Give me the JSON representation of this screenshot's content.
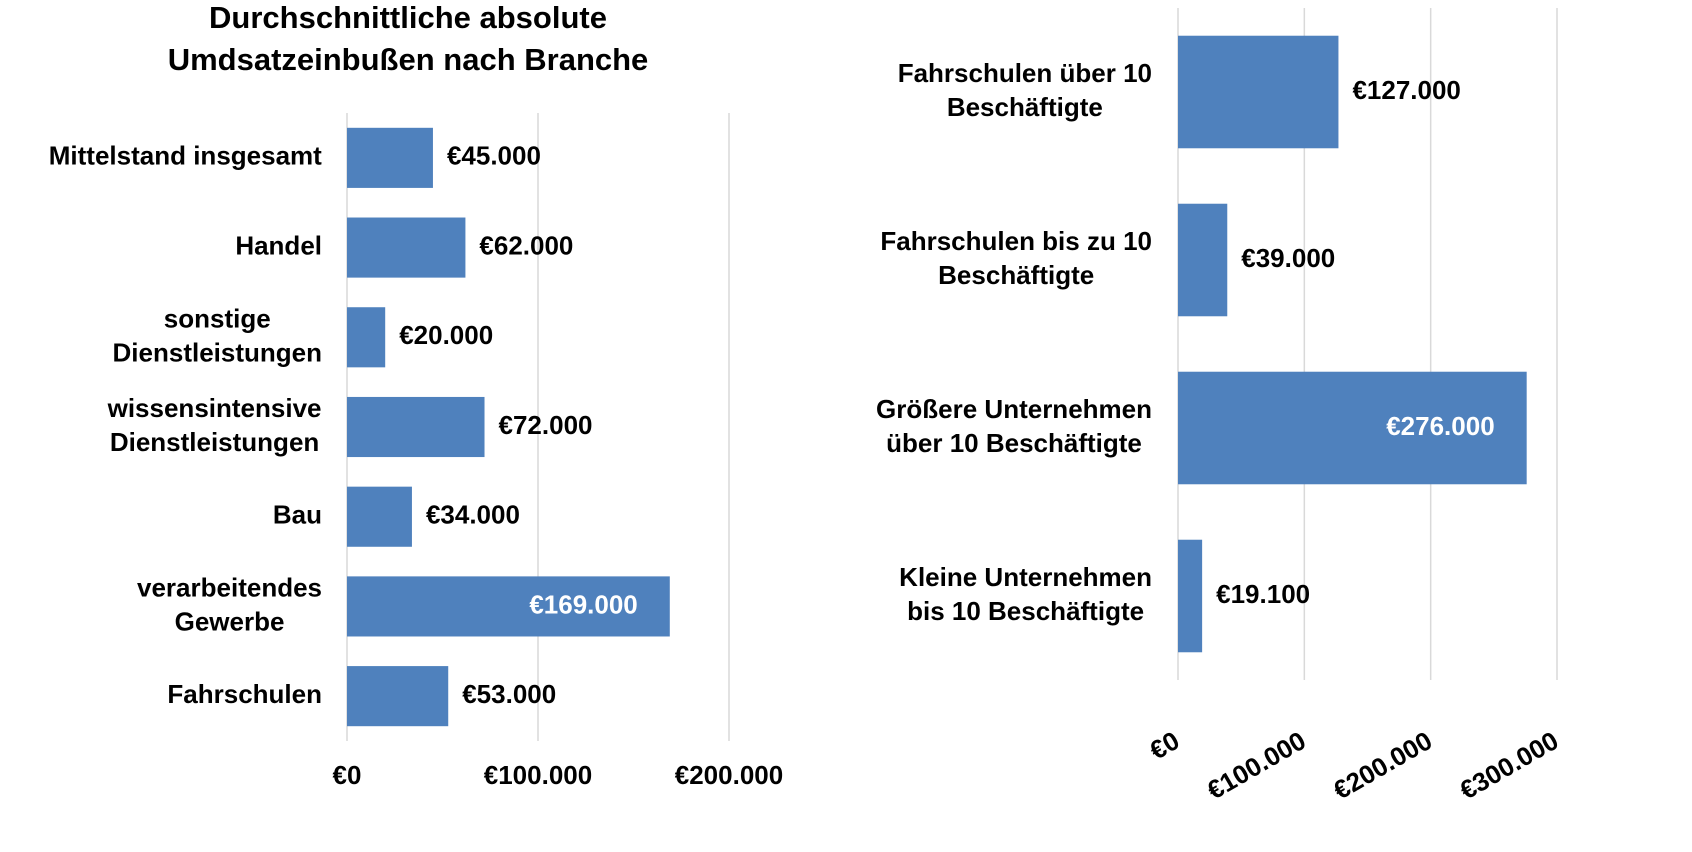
{
  "chart_data": [
    {
      "type": "barh",
      "title": "Durchschnittliche absolute\nUmdsatzeinbußen nach Branche",
      "categories": [
        "Mittelstand insgesamt",
        "Handel",
        "sonstige\nDienstleistungen",
        "wissensintensive\nDienstleistungen",
        "Bau",
        "verarbeitendes\nGewerbe",
        "Fahrschulen"
      ],
      "values": [
        45000,
        62000,
        20000,
        72000,
        34000,
        169000,
        53000
      ],
      "value_labels": [
        "€45.000",
        "€62.000",
        "€20.000",
        "€72.000",
        "€34.000",
        "€169.000",
        "€53.000"
      ],
      "color": "#4f81bd",
      "xlim": [
        0,
        200000
      ],
      "xticks": [
        {
          "value": 0,
          "label": "€0"
        },
        {
          "value": 100000,
          "label": "€100.000"
        },
        {
          "value": 200000,
          "label": "€200.000"
        }
      ],
      "grid": true
    },
    {
      "type": "barh",
      "categories": [
        "Fahrschulen über 10\nBeschäftigte",
        "Fahrschulen bis zu 10\nBeschäftigte",
        "Größere Unternehmen\nüber 10 Beschäftigte",
        "Kleine Unternehmen\nbis 10 Beschäftigte"
      ],
      "values": [
        127000,
        39000,
        276000,
        19100
      ],
      "value_labels": [
        "€127.000",
        "€39.000",
        "€276.000",
        "€19.100"
      ],
      "color": "#4f81bd",
      "xlim": [
        0,
        300000
      ],
      "xticks": [
        {
          "value": 0,
          "label": "€0"
        },
        {
          "value": 100000,
          "label": "€100.000"
        },
        {
          "value": 200000,
          "label": "€200.000"
        },
        {
          "value": 300000,
          "label": "€300.000"
        }
      ],
      "grid": true
    }
  ]
}
